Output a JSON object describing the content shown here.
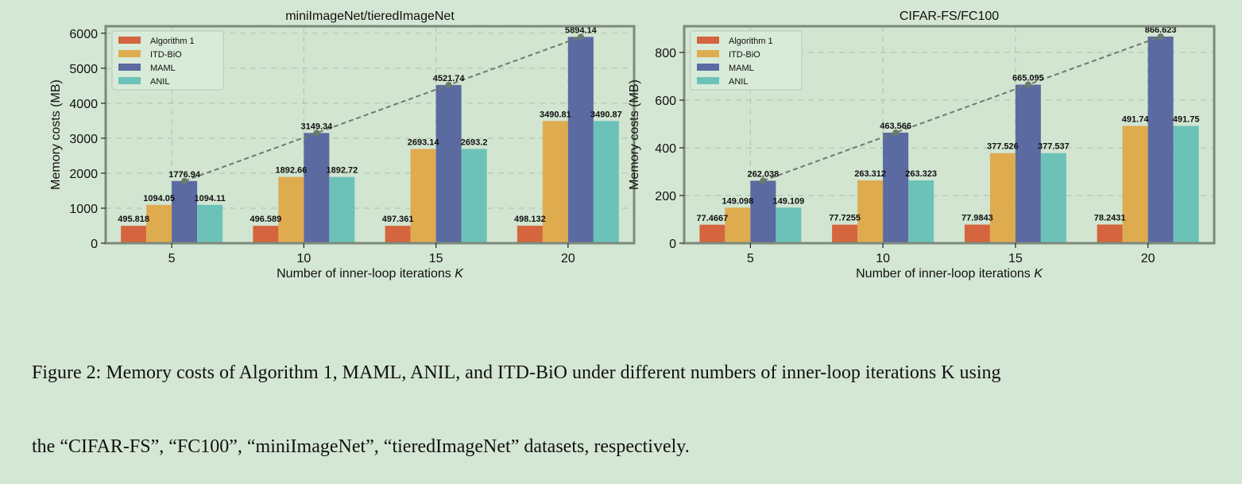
{
  "figure": {
    "caption_lines": [
      "Figure 2: Memory costs of Algorithm 1, MAML, ANIL, and ITD-BiO under different numbers of inner-loop iterations K using",
      "the “CIFAR-FS”, “FC100”, “miniImageNet”, “tieredImageNet” datasets, respectively."
    ]
  },
  "colors": {
    "Algorithm 1": "#d5653e",
    "ITD-BiO": "#dfab4f",
    "MAML": "#5b6aa0",
    "ANIL": "#6cc2b9",
    "trend": "#6b7b6b",
    "axes_bg": "#d1e5d1",
    "frame": "#7c8a7c"
  },
  "chart_data": [
    {
      "type": "bar",
      "title": "miniImageNet/tieredImageNet",
      "xlabel": "Number of inner-loop iterations K",
      "ylabel": "Memory costs (MB)",
      "categories": [
        "5",
        "10",
        "15",
        "20"
      ],
      "ylim": [
        0,
        6200
      ],
      "yticks": [
        0,
        1000,
        2000,
        3000,
        4000,
        5000,
        6000
      ],
      "grid": true,
      "legend": "top-left",
      "series": [
        {
          "name": "Algorithm 1",
          "values": [
            495.818,
            496.589,
            497.361,
            498.132
          ],
          "labels": [
            "495.818",
            "496.589",
            "497.361",
            "498.132"
          ]
        },
        {
          "name": "ITD-BiO",
          "values": [
            1094.05,
            1892.66,
            2693.14,
            3490.81
          ],
          "labels": [
            "1094.05",
            "1892.66",
            "2693.14",
            "3490.81"
          ]
        },
        {
          "name": "MAML",
          "values": [
            1776.94,
            3149.34,
            4521.74,
            5894.14
          ],
          "labels": [
            "1776.94",
            "3149.34",
            "4521.74",
            "5894.14"
          ]
        },
        {
          "name": "ANIL",
          "values": [
            1094.11,
            1892.72,
            2693.2,
            3490.87
          ],
          "labels": [
            "1094.11",
            "1892.72",
            "2693.2",
            "3490.87"
          ]
        }
      ],
      "trend_line": {
        "series": "MAML",
        "style": "dashed"
      }
    },
    {
      "type": "bar",
      "title": "CIFAR-FS/FC100",
      "xlabel": "Number of inner-loop iterations K",
      "ylabel": "Memory costs (MB)",
      "categories": [
        "5",
        "10",
        "15",
        "20"
      ],
      "ylim": [
        0,
        910
      ],
      "yticks": [
        0,
        200,
        400,
        600,
        800
      ],
      "grid": true,
      "legend": "top-left",
      "series": [
        {
          "name": "Algorithm 1",
          "values": [
            77.4667,
            77.7255,
            77.9843,
            78.2431
          ],
          "labels": [
            "77.4667",
            "77.7255",
            "77.9843",
            "78.2431"
          ]
        },
        {
          "name": "ITD-BiO",
          "values": [
            149.098,
            263.312,
            377.526,
            491.74
          ],
          "labels": [
            "149.098",
            "263.312",
            "377.526",
            "491.74"
          ]
        },
        {
          "name": "MAML",
          "values": [
            262.038,
            463.566,
            665.095,
            866.623
          ],
          "labels": [
            "262.038",
            "463.566",
            "665.095",
            "866.623"
          ]
        },
        {
          "name": "ANIL",
          "values": [
            149.109,
            263.323,
            377.537,
            491.75
          ],
          "labels": [
            "149.109",
            "263.323",
            "377.537",
            "491.75"
          ]
        }
      ],
      "trend_line": {
        "series": "MAML",
        "style": "dashed"
      }
    }
  ]
}
